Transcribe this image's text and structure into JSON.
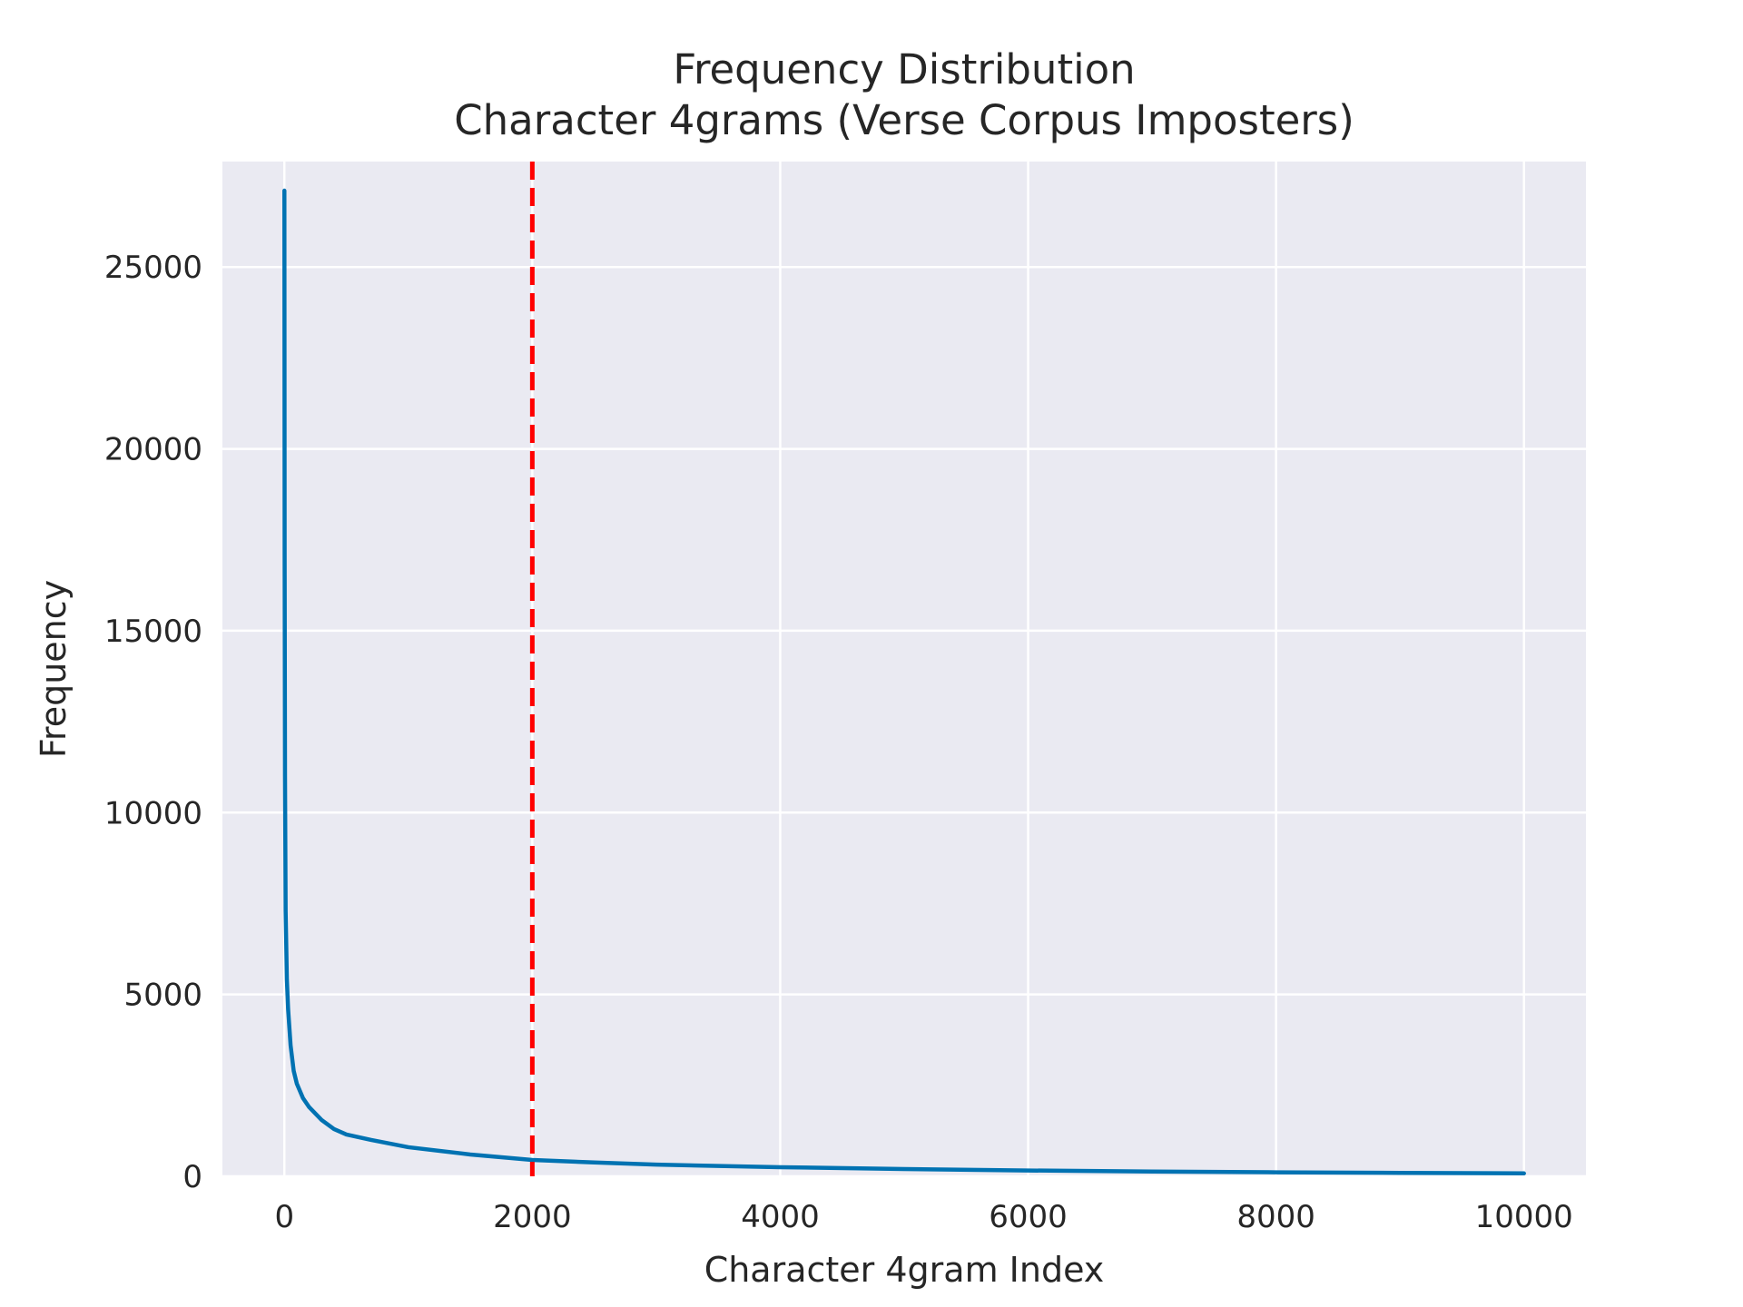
{
  "chart_data": {
    "type": "line",
    "title": "Frequency Distribution",
    "subtitle": "Character 4grams (Verse Corpus Imposters)",
    "xlabel": "Character 4gram Index",
    "ylabel": "Frequency",
    "xlim": [
      -500,
      10500
    ],
    "ylim": [
      0,
      27900
    ],
    "xticks": [
      0,
      2000,
      4000,
      6000,
      8000,
      10000
    ],
    "yticks": [
      0,
      5000,
      10000,
      15000,
      20000,
      25000
    ],
    "xtick_labels": [
      "0",
      "2000",
      "4000",
      "6000",
      "8000",
      "10000"
    ],
    "ytick_labels": [
      "0",
      "5000",
      "10000",
      "15000",
      "20000",
      "25000"
    ],
    "grid": true,
    "background_color": "#eaeaf2",
    "series": [
      {
        "color": "#0072b2",
        "x": [
          0,
          2,
          5,
          10,
          20,
          30,
          50,
          75,
          100,
          150,
          200,
          300,
          400,
          500,
          700,
          1000,
          1500,
          2000,
          2500,
          3000,
          4000,
          5000,
          6000,
          7000,
          8000,
          9000,
          10000
        ],
        "y": [
          27100,
          17000,
          11000,
          7300,
          5400,
          4600,
          3600,
          2900,
          2550,
          2150,
          1900,
          1550,
          1300,
          1150,
          1000,
          800,
          600,
          450,
          380,
          320,
          250,
          200,
          160,
          130,
          110,
          95,
          80
        ]
      }
    ],
    "annotations": [
      {
        "type": "vline",
        "x": 2000,
        "color": "#ff0000",
        "style": "dashed"
      }
    ]
  }
}
